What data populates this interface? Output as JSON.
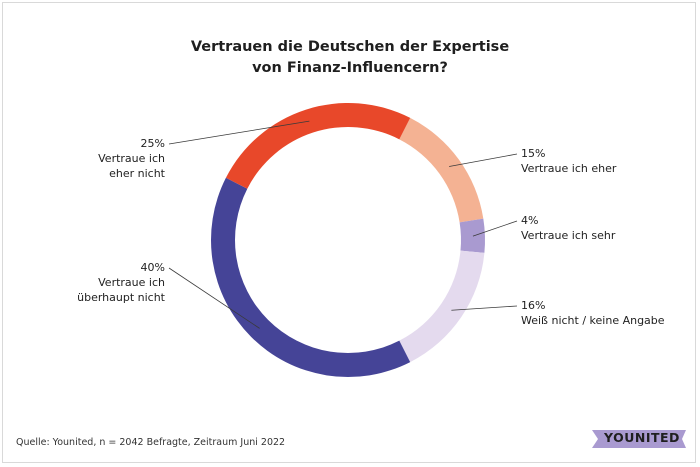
{
  "title": {
    "line1": "Vertrauen die Deutschen der Expertise",
    "line2": "von Finanz-Influencern?"
  },
  "chart_data": {
    "type": "pie",
    "variant": "donut",
    "title": "Vertrauen die Deutschen der Expertise von Finanz-Influencern?",
    "slices": [
      {
        "pct": "15%",
        "value": 15,
        "label": "Vertraue ich eher",
        "lines": [
          "Vertraue ich eher"
        ],
        "color": "#f4b293",
        "side": "right"
      },
      {
        "pct": "4%",
        "value": 4,
        "label": "Vertraue ich sehr",
        "lines": [
          "Vertraue ich sehr"
        ],
        "color": "#a99ad0",
        "side": "right"
      },
      {
        "pct": "16%",
        "value": 16,
        "label": "Weiß nicht / keine Angabe",
        "lines": [
          "Weiß nicht / keine Angabe"
        ],
        "color": "#e4daee",
        "side": "right"
      },
      {
        "pct": "40%",
        "value": 40,
        "label": "Vertraue ich überhaupt nicht",
        "lines": [
          "Vertraue ich",
          "überhaupt nicht"
        ],
        "color": "#454497",
        "side": "left"
      },
      {
        "pct": "25%",
        "value": 25,
        "label": "Vertraue ich eher nicht",
        "lines": [
          "Vertraue ich",
          "eher nicht"
        ],
        "color": "#e8482a",
        "side": "left"
      }
    ],
    "start_angle_deg": 27,
    "direction": "clockwise"
  },
  "footer": {
    "source": "Quelle: Younited, n = 2042 Befragte, Zeitraum Juni 2022"
  },
  "logo": {
    "text": "YOUNITED",
    "color": "#a99ad0"
  }
}
